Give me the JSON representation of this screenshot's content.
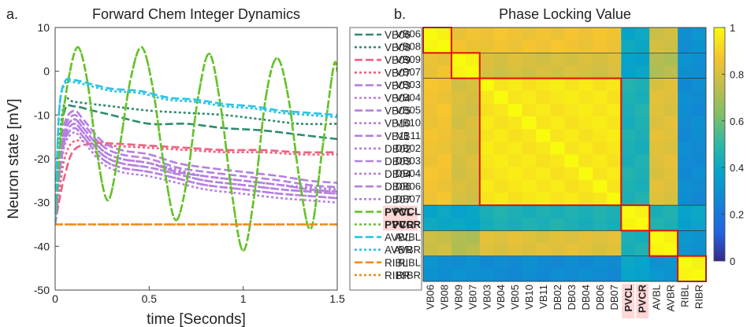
{
  "chart_data": [
    {
      "panel_label": "a.",
      "type": "line",
      "title": "Forward Chem Integer Dynamics",
      "xlabel": "time [Seconds]",
      "ylabel": "Neuron state [mV]",
      "xlim": [
        0,
        1.5
      ],
      "ylim": [
        -50,
        10
      ],
      "xticks": [
        0,
        0.5,
        1,
        1.5
      ],
      "xtick_labels": [
        "0",
        "0.5",
        "1",
        "1.5"
      ],
      "yticks": [
        -50,
        -40,
        -30,
        -20,
        -10,
        0,
        10
      ],
      "ytick_labels": [
        "-50",
        "-40",
        "-30",
        "-20",
        "-10",
        "0",
        "10"
      ],
      "grid": false,
      "legend_position": "right",
      "series": [
        {
          "name": "VB06",
          "color": "#2e8b6e",
          "dash": "long",
          "x": [
            0,
            0.02,
            0.05,
            0.1,
            0.2,
            0.3,
            0.5,
            0.7,
            0.9,
            1.1,
            1.3,
            1.5
          ],
          "y": [
            -35,
            -20,
            -9,
            -8,
            -9,
            -10,
            -12,
            -12,
            -13,
            -13.5,
            -14.5,
            -15.5
          ]
        },
        {
          "name": "VB08",
          "color": "#2e8b6e",
          "dash": "short",
          "x": [
            0,
            0.02,
            0.05,
            0.1,
            0.2,
            0.3,
            0.5,
            0.7,
            0.9,
            1.1,
            1.3,
            1.5
          ],
          "y": [
            -35,
            -18,
            -7,
            -7,
            -7.5,
            -8,
            -9,
            -9.5,
            -10,
            -11,
            -12,
            -12
          ]
        },
        {
          "name": "VB09",
          "color": "#f06080",
          "dash": "long",
          "x": [
            0,
            0.02,
            0.05,
            0.1,
            0.2,
            0.3,
            0.5,
            0.7,
            0.9,
            1.1,
            1.3,
            1.5
          ],
          "y": [
            -35,
            -30,
            -24,
            -18,
            -16.5,
            -16.5,
            -17,
            -17.5,
            -18,
            -18,
            -18.5,
            -18.5
          ]
        },
        {
          "name": "VB07",
          "color": "#f06080",
          "dash": "short",
          "x": [
            0,
            0.02,
            0.05,
            0.1,
            0.2,
            0.3,
            0.5,
            0.7,
            0.9,
            1.1,
            1.3,
            1.5
          ],
          "y": [
            -35,
            -28,
            -20,
            -16,
            -16.5,
            -17,
            -17.5,
            -18,
            -18.5,
            -18.5,
            -19,
            -19
          ]
        },
        {
          "name": "VB03",
          "color": "#b57fe0",
          "dash": "long",
          "x": [
            0,
            0.02,
            0.05,
            0.1,
            0.15,
            0.25,
            0.35,
            0.5,
            0.65,
            0.8,
            1.0,
            1.2,
            1.35,
            1.5
          ],
          "y": [
            -35,
            -22,
            -13,
            -10,
            -12,
            -17,
            -19,
            -20,
            -22,
            -23,
            -24,
            -25,
            -26,
            -26.5
          ]
        },
        {
          "name": "VB04",
          "color": "#b57fe0",
          "dash": "short",
          "x": [
            0,
            0.02,
            0.05,
            0.1,
            0.15,
            0.25,
            0.35,
            0.5,
            0.65,
            0.8,
            1.0,
            1.2,
            1.35,
            1.5
          ],
          "y": [
            -35,
            -24,
            -15,
            -12,
            -14,
            -19,
            -21,
            -22,
            -23.5,
            -25,
            -26,
            -27,
            -27.5,
            -28
          ]
        },
        {
          "name": "VB05",
          "color": "#b57fe0",
          "dash": "long",
          "x": [
            0,
            0.02,
            0.05,
            0.1,
            0.15,
            0.25,
            0.35,
            0.5,
            0.65,
            0.8,
            1.0,
            1.2,
            1.35,
            1.5
          ],
          "y": [
            -35,
            -23,
            -14,
            -11,
            -13,
            -18,
            -20,
            -21,
            -23,
            -24,
            -25,
            -26,
            -27,
            -27.5
          ]
        },
        {
          "name": "VB10",
          "color": "#b57fe0",
          "dash": "short",
          "x": [
            0,
            0.02,
            0.05,
            0.1,
            0.15,
            0.25,
            0.35,
            0.5,
            0.65,
            0.8,
            1.0,
            1.2,
            1.35,
            1.5
          ],
          "y": [
            -35,
            -25,
            -16,
            -13,
            -15,
            -20,
            -22,
            -23,
            -24.5,
            -26,
            -27,
            -28,
            -28.5,
            -29
          ]
        },
        {
          "name": "VB11",
          "color": "#b57fe0",
          "dash": "long",
          "x": [
            0,
            0.02,
            0.05,
            0.1,
            0.15,
            0.25,
            0.35,
            0.5,
            0.65,
            0.8,
            1.0,
            1.2,
            1.35,
            1.5
          ],
          "y": [
            -35,
            -22,
            -12,
            -9,
            -11,
            -16,
            -18,
            -19,
            -21,
            -22,
            -23,
            -24,
            -25,
            -25.5
          ]
        },
        {
          "name": "DB02",
          "color": "#b57fe0",
          "dash": "short",
          "x": [
            0,
            0.02,
            0.05,
            0.1,
            0.15,
            0.25,
            0.35,
            0.5,
            0.65,
            0.8,
            1.0,
            1.2,
            1.35,
            1.5
          ],
          "y": [
            -35,
            -26,
            -17,
            -14,
            -16,
            -21,
            -23,
            -24,
            -25.5,
            -27,
            -28,
            -29,
            -29.5,
            -30
          ]
        },
        {
          "name": "DB03",
          "color": "#b57fe0",
          "dash": "long",
          "x": [
            0,
            0.02,
            0.05,
            0.1,
            0.15,
            0.25,
            0.35,
            0.5,
            0.65,
            0.8,
            1.0,
            1.2,
            1.35,
            1.5
          ],
          "y": [
            -35,
            -24,
            -15,
            -12,
            -14,
            -19,
            -21,
            -22,
            -23.5,
            -25,
            -26,
            -27,
            -27.5,
            -28
          ]
        },
        {
          "name": "DB04",
          "color": "#b57fe0",
          "dash": "short",
          "x": [
            0,
            0.02,
            0.05,
            0.1,
            0.15,
            0.25,
            0.35,
            0.5,
            0.65,
            0.8,
            1.0,
            1.2,
            1.35,
            1.5
          ],
          "y": [
            -35,
            -23,
            -14,
            -11,
            -13,
            -18,
            -20,
            -21,
            -23,
            -24,
            -25,
            -26,
            -27,
            -27.5
          ]
        },
        {
          "name": "DB06",
          "color": "#b57fe0",
          "dash": "long",
          "x": [
            0,
            0.02,
            0.05,
            0.1,
            0.15,
            0.25,
            0.35,
            0.5,
            0.65,
            0.8,
            1.0,
            1.2,
            1.35,
            1.5
          ],
          "y": [
            -35,
            -25,
            -16,
            -13,
            -15,
            -20,
            -22,
            -23,
            -24.5,
            -26,
            -27,
            -28,
            -28.5,
            -29
          ]
        },
        {
          "name": "DB07",
          "color": "#b57fe0",
          "dash": "short",
          "x": [
            0,
            0.02,
            0.05,
            0.1,
            0.15,
            0.25,
            0.35,
            0.5,
            0.65,
            0.8,
            1.0,
            1.2,
            1.35,
            1.5
          ],
          "y": [
            -35,
            -24,
            -14,
            -11,
            -13,
            -18,
            -20,
            -21,
            -22.5,
            -24,
            -25,
            -26,
            -26.5,
            -27
          ]
        },
        {
          "name": "PVCL",
          "color": "#66c12a",
          "dash": "long",
          "x": [
            0,
            0.03,
            0.07,
            0.12,
            0.17,
            0.22,
            0.28,
            0.34,
            0.4,
            0.46,
            0.52,
            0.58,
            0.64,
            0.7,
            0.76,
            0.82,
            0.88,
            0.94,
            1.0,
            1.06,
            1.12,
            1.18,
            1.24,
            1.3,
            1.36,
            1.42,
            1.48,
            1.5
          ],
          "y": [
            -35,
            -15,
            -2,
            5.5,
            -2,
            -18,
            -29.5,
            -18,
            -2,
            5.5,
            -4,
            -22,
            -34,
            -25,
            -6,
            4,
            -8,
            -28,
            -41,
            -28,
            -6,
            3,
            -6,
            -25,
            -36,
            -18,
            1,
            0
          ]
        },
        {
          "name": "PVCR",
          "color": "#66c12a",
          "dash": "short",
          "x": [
            0,
            0.03,
            0.07,
            0.12,
            0.17,
            0.22,
            0.28,
            0.34,
            0.4,
            0.46,
            0.52,
            0.58,
            0.64,
            0.7,
            0.76,
            0.82,
            0.88,
            0.94,
            1.0,
            1.06,
            1.12,
            1.18,
            1.24,
            1.3,
            1.36,
            1.42,
            1.48,
            1.5
          ],
          "y": [
            -35,
            -15,
            -2,
            5.5,
            -2,
            -18,
            -29.5,
            -18,
            -2,
            5.5,
            -4,
            -22,
            -34,
            -25,
            -6,
            4,
            -8,
            -28,
            -41,
            -28,
            -6,
            3,
            -6,
            -25,
            -36,
            -18,
            1,
            0
          ]
        },
        {
          "name": "AVBL",
          "color": "#29c4e8",
          "dash": "long",
          "x": [
            0,
            0.02,
            0.05,
            0.1,
            0.2,
            0.3,
            0.45,
            0.6,
            0.75,
            0.9,
            1.05,
            1.2,
            1.35,
            1.5
          ],
          "y": [
            -35,
            -10,
            -2.5,
            -2,
            -3,
            -4,
            -4.5,
            -6,
            -6.5,
            -7.5,
            -8,
            -9,
            -9.5,
            -10
          ]
        },
        {
          "name": "AVBR",
          "color": "#29c4e8",
          "dash": "short",
          "x": [
            0,
            0.02,
            0.05,
            0.1,
            0.2,
            0.3,
            0.45,
            0.6,
            0.75,
            0.9,
            1.05,
            1.2,
            1.35,
            1.5
          ],
          "y": [
            -35,
            -10,
            -3,
            -2.5,
            -3.5,
            -4.5,
            -5,
            -6.5,
            -7,
            -8,
            -8.5,
            -9.5,
            -10,
            -10.5
          ]
        },
        {
          "name": "RIBL",
          "color": "#f08a1e",
          "dash": "long",
          "x": [
            0,
            1.5
          ],
          "y": [
            -35,
            -35
          ]
        },
        {
          "name": "RIBR",
          "color": "#f08a1e",
          "dash": "short",
          "x": [
            0,
            1.5
          ],
          "y": [
            -35,
            -35
          ]
        }
      ]
    },
    {
      "panel_label": "b.",
      "type": "heatmap",
      "title": "Phase Locking Value",
      "rows": [
        "VB06",
        "VB08",
        "VB09",
        "VB07",
        "VB03",
        "VB04",
        "VB05",
        "VB10",
        "VB11",
        "DB02",
        "DB03",
        "DB04",
        "DB06",
        "DB07",
        "PVCL",
        "PVCR",
        "AVBL",
        "AVBR",
        "RIBL",
        "RIBR"
      ],
      "columns": [
        "VB06",
        "VB08",
        "VB09",
        "VB07",
        "VB03",
        "VB04",
        "VB05",
        "VB10",
        "VB11",
        "DB02",
        "DB03",
        "DB04",
        "DB06",
        "DB07",
        "PVCL",
        "PVCR",
        "AVBL",
        "AVBR",
        "RIBL",
        "RIBR"
      ],
      "highlighted_labels": [
        "PVCL",
        "PVCR"
      ],
      "highlight_color": "#ff1010",
      "group_sizes": [
        2,
        2,
        10,
        2,
        2,
        2
      ],
      "group_to_group_values": [
        [
          1.0,
          0.85,
          0.86,
          0.4,
          0.78,
          0.3
        ],
        [
          0.85,
          1.0,
          0.8,
          0.38,
          0.72,
          0.3
        ],
        [
          0.86,
          0.8,
          0.97,
          0.45,
          0.82,
          0.28
        ],
        [
          0.4,
          0.38,
          0.45,
          1.0,
          0.45,
          0.38
        ],
        [
          0.78,
          0.72,
          0.82,
          0.45,
          1.0,
          0.32
        ],
        [
          0.3,
          0.3,
          0.28,
          0.38,
          0.32,
          1.0
        ]
      ],
      "colorbar": {
        "min": 0,
        "max": 1,
        "ticks": [
          0,
          0.2,
          0.4,
          0.6,
          0.8,
          1
        ],
        "tick_labels": [
          "0",
          "0.2",
          "0.4",
          "0.6",
          "0.8",
          "1"
        ]
      }
    }
  ]
}
